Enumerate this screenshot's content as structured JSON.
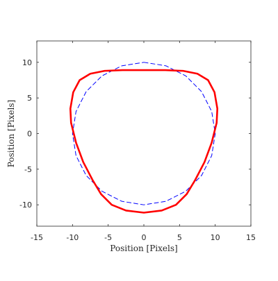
{
  "chart_data": {
    "type": "line",
    "xlabel": "Position [Pixels]",
    "ylabel": "Position [Pixels]",
    "xlim": [
      -15,
      15
    ],
    "ylim": [
      -13,
      13
    ],
    "x_ticks": [
      -15,
      -10,
      -5,
      0,
      5,
      10,
      15
    ],
    "y_ticks": [
      -10,
      -5,
      0,
      5,
      10
    ],
    "x_tick_labels": [
      "-15",
      "-10",
      "-5",
      "0",
      "5",
      "10",
      "15"
    ],
    "y_tick_labels": [
      "-10",
      "-5",
      "0",
      "5",
      "10"
    ],
    "grid": false,
    "series": [
      {
        "style": "dashed",
        "color": "#0000ff",
        "x": [
          0,
          3.09,
          5.88,
          8.09,
          9.51,
          10,
          9.51,
          8.09,
          5.88,
          3.09,
          0,
          -3.09,
          -5.88,
          -8.09,
          -9.51,
          -10,
          -9.51,
          -8.09,
          -5.88,
          -3.09,
          0
        ],
        "y": [
          10,
          9.51,
          8.09,
          5.88,
          3.09,
          0,
          -3.09,
          -5.88,
          -8.09,
          -9.51,
          -10,
          -9.51,
          -8.09,
          -5.88,
          -3.09,
          0,
          3.09,
          5.88,
          8.09,
          9.51,
          10
        ]
      },
      {
        "style": "solid",
        "color": "#ff0000",
        "x": [
          0,
          3,
          5.5,
          7.5,
          9,
          9.9,
          10.3,
          10.2,
          9.5,
          8.5,
          7.2,
          6,
          4.5,
          2.5,
          0,
          -2.5,
          -4.5,
          -6,
          -7.2,
          -8.5,
          -9.5,
          -10.2,
          -10.3,
          -9.9,
          -9,
          -7.5,
          -5.5,
          -3,
          0
        ],
        "y": [
          8.9,
          8.9,
          8.8,
          8.4,
          7.5,
          5.8,
          3.5,
          1.5,
          -1.3,
          -4,
          -6.5,
          -8.5,
          -10,
          -10.8,
          -11.1,
          -10.8,
          -10,
          -8.5,
          -6.5,
          -4,
          -1.3,
          1.5,
          3.5,
          5.8,
          7.5,
          8.4,
          8.8,
          8.9,
          8.9
        ]
      }
    ]
  }
}
